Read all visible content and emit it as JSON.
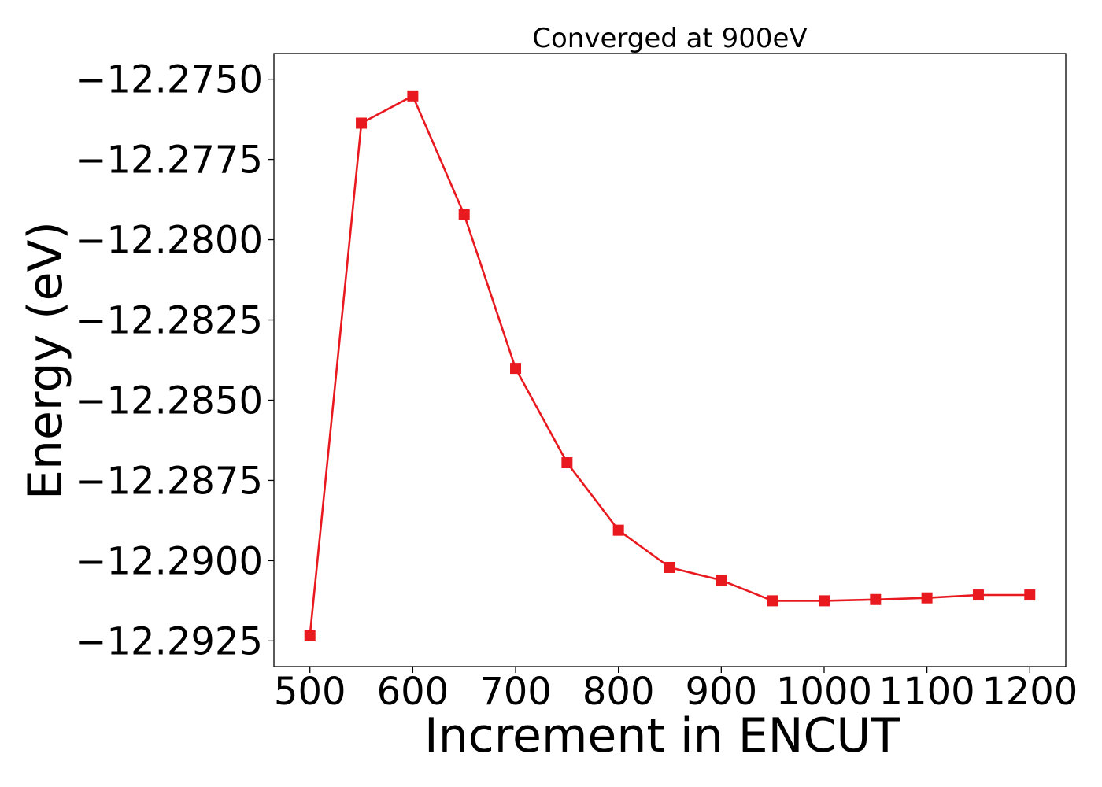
{
  "chart_data": {
    "type": "line",
    "title": "Converged at 900eV",
    "xlabel": "Increment in ENCUT",
    "ylabel": "Energy (eV)",
    "xlim": [
      465,
      1235
    ],
    "ylim": [
      -12.2933,
      -12.2742
    ],
    "x_ticks": [
      500,
      600,
      700,
      800,
      900,
      1000,
      1100,
      1200
    ],
    "y_ticks": [
      -12.2925,
      -12.29,
      -12.2875,
      -12.285,
      -12.2825,
      -12.28,
      -12.2775,
      -12.275
    ],
    "x_tick_labels": [
      "500",
      "600",
      "700",
      "800",
      "900",
      "1000",
      "1100",
      "1200"
    ],
    "y_tick_labels": [
      "−12.2925",
      "−12.2900",
      "−12.2875",
      "−12.2850",
      "−12.2825",
      "−12.2800",
      "−12.2775",
      "−12.2750"
    ],
    "grid": false,
    "series": [
      {
        "color": "#e8191f",
        "marker": "square",
        "x": [
          500,
          550,
          600,
          650,
          700,
          750,
          800,
          850,
          900,
          950,
          1000,
          1050,
          1100,
          1150,
          1200
        ],
        "y": [
          -12.29234,
          -12.27637,
          -12.27552,
          -12.27922,
          -12.28401,
          -12.28695,
          -12.28905,
          -12.29021,
          -12.29061,
          -12.29125,
          -12.29125,
          -12.29121,
          -12.29116,
          -12.29107,
          -12.29107
        ]
      }
    ]
  }
}
